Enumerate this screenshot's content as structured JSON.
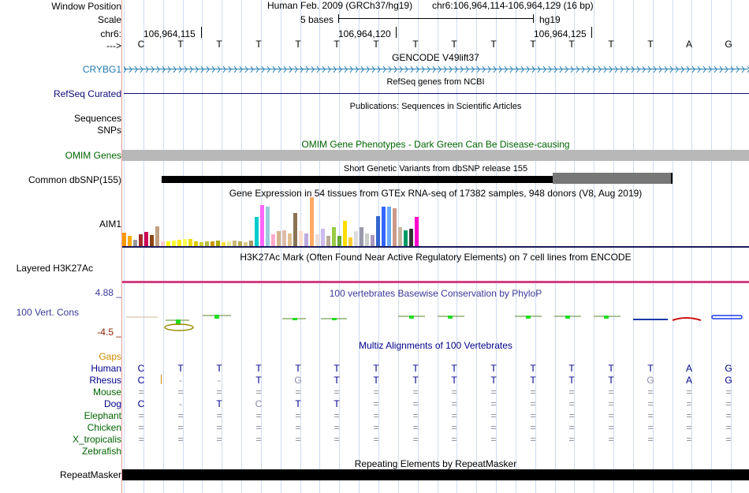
{
  "header": {
    "window_position_label": "Window Position",
    "scale_label": "Scale",
    "chrom_label": "chr6:",
    "strand_label": "--->",
    "assembly": "Human Feb. 2009 (GRCh37/hg19)",
    "position": "chr6:106,964,114-106,964,129 (16 bp)",
    "scale_text": "5 bases",
    "scale_db": "hg19",
    "coord_ticks": [
      "106,964,115",
      "106,964,120",
      "106,964,125"
    ]
  },
  "sequence": [
    "C",
    "T",
    "T",
    "T",
    "T",
    "T",
    "T",
    "T",
    "T",
    "T",
    "T",
    "T",
    "T",
    "T",
    "A",
    "G"
  ],
  "tracks": {
    "gencode": {
      "label": "CRYBG1",
      "title": "GENCODE V49lift37"
    },
    "refseq": {
      "label": "RefSeq Curated",
      "title": "RefSeq genes from NCBI"
    },
    "pubs": {
      "title": "Publications: Sequences in Scientific Articles"
    },
    "sequences": {
      "label": "Sequences"
    },
    "snps": {
      "label": "SNPs"
    },
    "omim": {
      "label": "OMIM Genes",
      "title": "OMIM Gene Phenotypes - Dark Green Can Be Disease-causing"
    },
    "dbsnp": {
      "label": "Common dbSNP(155)",
      "title": "Short Genetic Variants from dbSNP release 155"
    },
    "gtex": {
      "label": "AIM1",
      "title": "Gene Expression in 54 tissues from GTEx RNA-seq of 17382 samples, 948 donors (V8, Aug 2019)"
    },
    "h3k27ac": {
      "label": "Layered H3K27Ac",
      "title": "H3K27Ac Mark (Often Found Near Active Regulatory Elements) on 7 cell lines from ENCODE"
    },
    "cons": {
      "label": "100 Vert. Cons",
      "max": "4.88 _",
      "min": "-4.5 _",
      "title": "100 vertebrates Basewise Conservation by PhyloP"
    },
    "multiz": {
      "title": "Multiz Alignments of 100 Vertebrates"
    },
    "repeatmasker": {
      "label": "RepeatMasker",
      "title": "Repeating Elements by RepeatMasker"
    }
  },
  "alignment": {
    "gaps_label": "Gaps",
    "species": [
      {
        "name": "Human",
        "bases": [
          "C",
          "T",
          "T",
          "T",
          "T",
          "T",
          "T",
          "T",
          "T",
          "T",
          "T",
          "T",
          "T",
          "T",
          "A",
          "G"
        ]
      },
      {
        "name": "Rhesus",
        "bases": [
          "C",
          "-",
          "-",
          "T",
          "G",
          "T",
          "T",
          "T",
          "T",
          "T",
          "T",
          "T",
          "T",
          "G",
          "A",
          "G"
        ]
      },
      {
        "name": "Mouse",
        "bases": [
          "=",
          "=",
          "=",
          "=",
          "=",
          "=",
          "=",
          "=",
          "=",
          "=",
          "=",
          "=",
          "=",
          "=",
          "=",
          "="
        ]
      },
      {
        "name": "Dog",
        "bases": [
          "C",
          "-",
          "T",
          "C",
          "T",
          "T",
          "=",
          "=",
          "=",
          "=",
          "=",
          "=",
          "=",
          "=",
          "=",
          "="
        ]
      },
      {
        "name": "Elephant",
        "bases": [
          "=",
          "=",
          "=",
          "=",
          "=",
          "=",
          "=",
          "=",
          "=",
          "=",
          "=",
          "=",
          "=",
          "=",
          "=",
          "="
        ]
      },
      {
        "name": "Chicken",
        "bases": [
          "=",
          "=",
          "=",
          "=",
          "=",
          "=",
          "=",
          "=",
          "=",
          "=",
          "=",
          "=",
          "=",
          "=",
          "=",
          "="
        ]
      },
      {
        "name": "X_tropicalis",
        "bases": [
          "=",
          "=",
          "=",
          "=",
          "=",
          "=",
          "=",
          "=",
          "=",
          "=",
          "=",
          "=",
          "=",
          "=",
          "=",
          "="
        ]
      },
      {
        "name": "Zebrafish",
        "bases": [
          "",
          "",
          "",
          "",
          "",
          "",
          "",
          "",
          "",
          "",
          "",
          "",
          "",
          "",
          "",
          ""
        ]
      }
    ]
  },
  "gtex_values": [
    17,
    13,
    8,
    15,
    18,
    14,
    25,
    6,
    6,
    7,
    8,
    9,
    9,
    6,
    5,
    6,
    6,
    7,
    5,
    6,
    7,
    6,
    5,
    7,
    37,
    52,
    50,
    15,
    19,
    20,
    16,
    42,
    19,
    16,
    62,
    15,
    22,
    13,
    24,
    13,
    32,
    11,
    19,
    24,
    16,
    14,
    38,
    50,
    50,
    48,
    24,
    20,
    22,
    37
  ],
  "gtex_colors": [
    "#ff9900",
    "#ffaa00",
    "#999999",
    "#a52a2a",
    "#cc0055",
    "#8b4513",
    "#c0a080",
    "#ffcccc",
    "#ffff00",
    "#ffff33",
    "#ffee00",
    "#ffff55",
    "#eedd00",
    "#ddcc00",
    "#cccc33",
    "#bbbb44",
    "#cc9900",
    "#aaaa00",
    "#ffdd44",
    "#eeee99",
    "#ccbb77",
    "#bbaa55",
    "#ddcc88",
    "#aa9966",
    "#00cccc",
    "#ff66ff",
    "#99ccdd",
    "#ffaacc",
    "#d2b48c",
    "#ddbbaa",
    "#e0c090",
    "#8b7355",
    "#ffddcc",
    "#bbaadd",
    "#ffaa66",
    "#eedddd",
    "#ccbbee",
    "#bbaa99",
    "#99cc44",
    "#66aa33",
    "#ffdd00",
    "#ffcc33",
    "#dddddd",
    "#9999aa",
    "#cccccc",
    "#aa99bb",
    "#3366cc",
    "#3366ff",
    "#66aaff",
    "#cc9988",
    "#c8b8a0",
    "#009966",
    "#333333",
    "#ff00cc"
  ],
  "colors": {
    "gencode": "#1f7ab0",
    "refseq": "#0c0c78",
    "omim": "#006400",
    "cons_label": "#3a3a9a",
    "cons_min": "#8b2200",
    "gaps": "#d08a00",
    "h3k27ac": "#d04080",
    "multiz_title": "#00008b",
    "grid": "#cfdcf0"
  }
}
